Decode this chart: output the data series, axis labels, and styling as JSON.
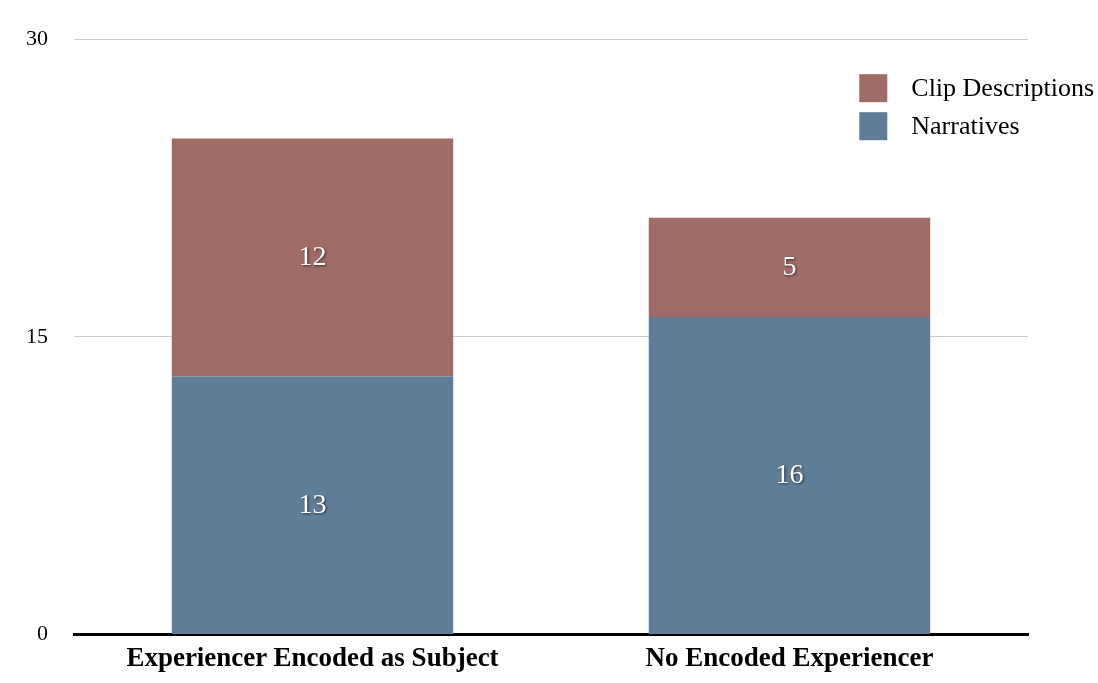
{
  "chart_data": {
    "type": "bar",
    "stacked": true,
    "categories": [
      "Experiencer Encoded as Subject",
      "No Encoded Experiencer"
    ],
    "series": [
      {
        "name": "Narratives",
        "color": "#5f7d96",
        "values": [
          13,
          16
        ]
      },
      {
        "name": "Clip Descriptions",
        "color": "#9e6b67",
        "values": [
          12,
          5
        ]
      }
    ],
    "ylim": [
      0,
      30
    ],
    "yticks": [
      0,
      15,
      30
    ],
    "grid": "y",
    "legend": "top right",
    "data_labels": true
  }
}
